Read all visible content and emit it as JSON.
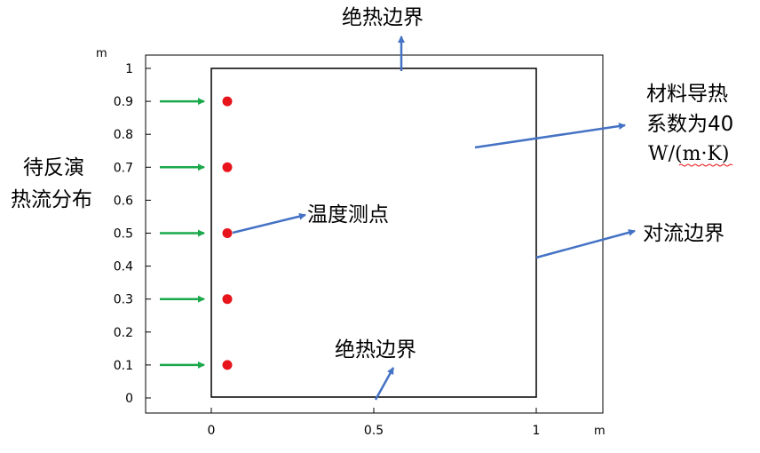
{
  "axes": {
    "x_unit": "m",
    "y_unit": "m",
    "x_ticks": [
      "0",
      "0.5",
      "1"
    ],
    "y_ticks": [
      "0",
      "0.1",
      "0.2",
      "0.3",
      "0.4",
      "0.5",
      "0.6",
      "0.7",
      "0.8",
      "0.9",
      "1"
    ]
  },
  "labels": {
    "top_boundary": "绝热边界",
    "bottom_boundary": "绝热边界",
    "left_flux_line1": "待反演",
    "left_flux_line2": "热流分布",
    "temperature_points": "温度测点",
    "conductivity_line1": "材料导热",
    "conductivity_line2": "系数为40",
    "conductivity_line3": "W/(m·K)",
    "convection_boundary": "对流边界"
  },
  "measurement_points_y": [
    0.1,
    0.3,
    0.5,
    0.7,
    0.9
  ],
  "flux_arrows_y": [
    0.1,
    0.3,
    0.5,
    0.7,
    0.9
  ],
  "colors": {
    "point": "#e8141b",
    "flux_arrow": "#1aa84a",
    "annotation_arrow": "#4472c4",
    "frame": "#000000",
    "squiggle": "#e8141b"
  }
}
